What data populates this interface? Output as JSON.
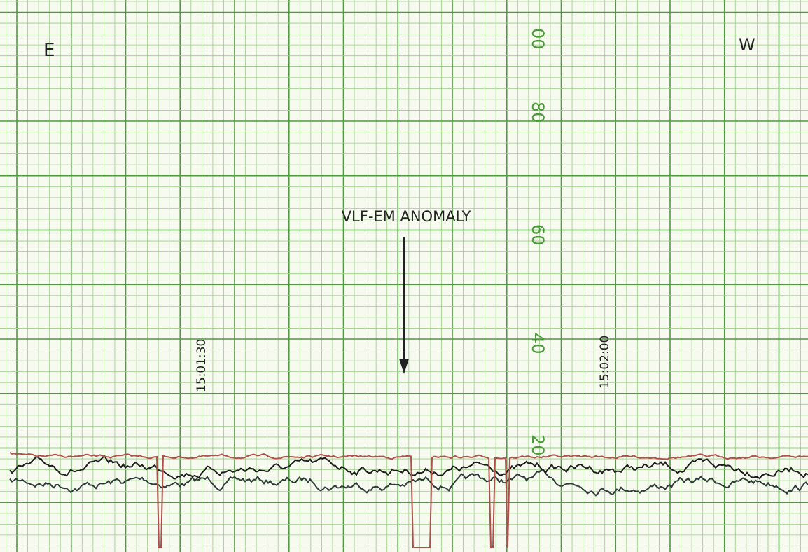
{
  "header": {
    "left": "E",
    "right": "W"
  },
  "annotation": "VLF-EM ANOMALY",
  "scale_labels": [
    "00",
    "80",
    "60",
    "40",
    "20"
  ],
  "timestamps": [
    "15:01:30",
    "15:02:00"
  ]
}
